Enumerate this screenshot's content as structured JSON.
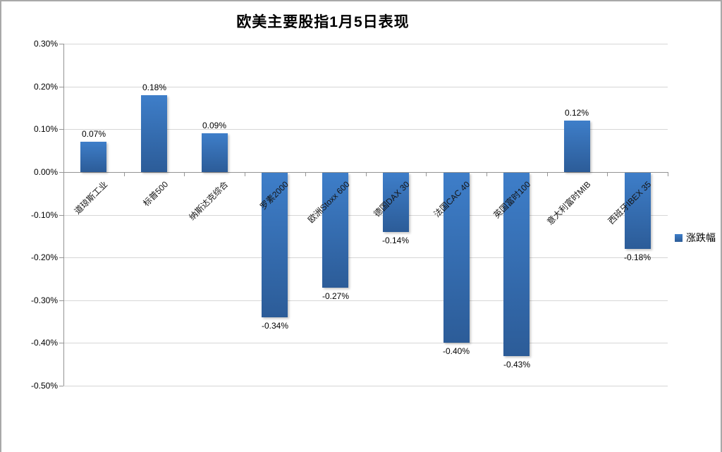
{
  "chart_data": {
    "type": "bar",
    "title": "欧美主要股指1月5日表现",
    "categories": [
      "道琼斯工业",
      "标普500",
      "纳斯达克综合",
      "罗素2000",
      "欧洲Stoxx 600",
      "德国DAX 30",
      "法国CAC 40",
      "英国富时100",
      "意大利富时MIB",
      "西班牙IBEX 35"
    ],
    "series": [
      {
        "name": "涨跌幅",
        "values": [
          0.07,
          0.18,
          0.09,
          -0.34,
          -0.27,
          -0.14,
          -0.4,
          -0.43,
          0.12,
          -0.18
        ]
      }
    ],
    "data_labels": [
      "0.07%",
      "0.18%",
      "0.09%",
      "-0.34%",
      "-0.27%",
      "-0.14%",
      "-0.40%",
      "-0.43%",
      "0.12%",
      "-0.18%"
    ],
    "y_axis": {
      "ticks": [
        "0.30%",
        "0.20%",
        "0.10%",
        "0.00%",
        "-0.10%",
        "-0.20%",
        "-0.30%",
        "-0.40%",
        "-0.50%"
      ],
      "max": 0.3,
      "min": -0.5,
      "step": 0.1
    },
    "legend": {
      "position": "right",
      "entries": [
        "涨跌幅"
      ]
    },
    "grid": true,
    "colors": {
      "bar_top": "#3E7EC9",
      "bar_bottom": "#2C5C98",
      "gridline": "#D6D6D6",
      "axis": "#949494",
      "border": "#A9A9A9",
      "text": "#000000"
    }
  }
}
